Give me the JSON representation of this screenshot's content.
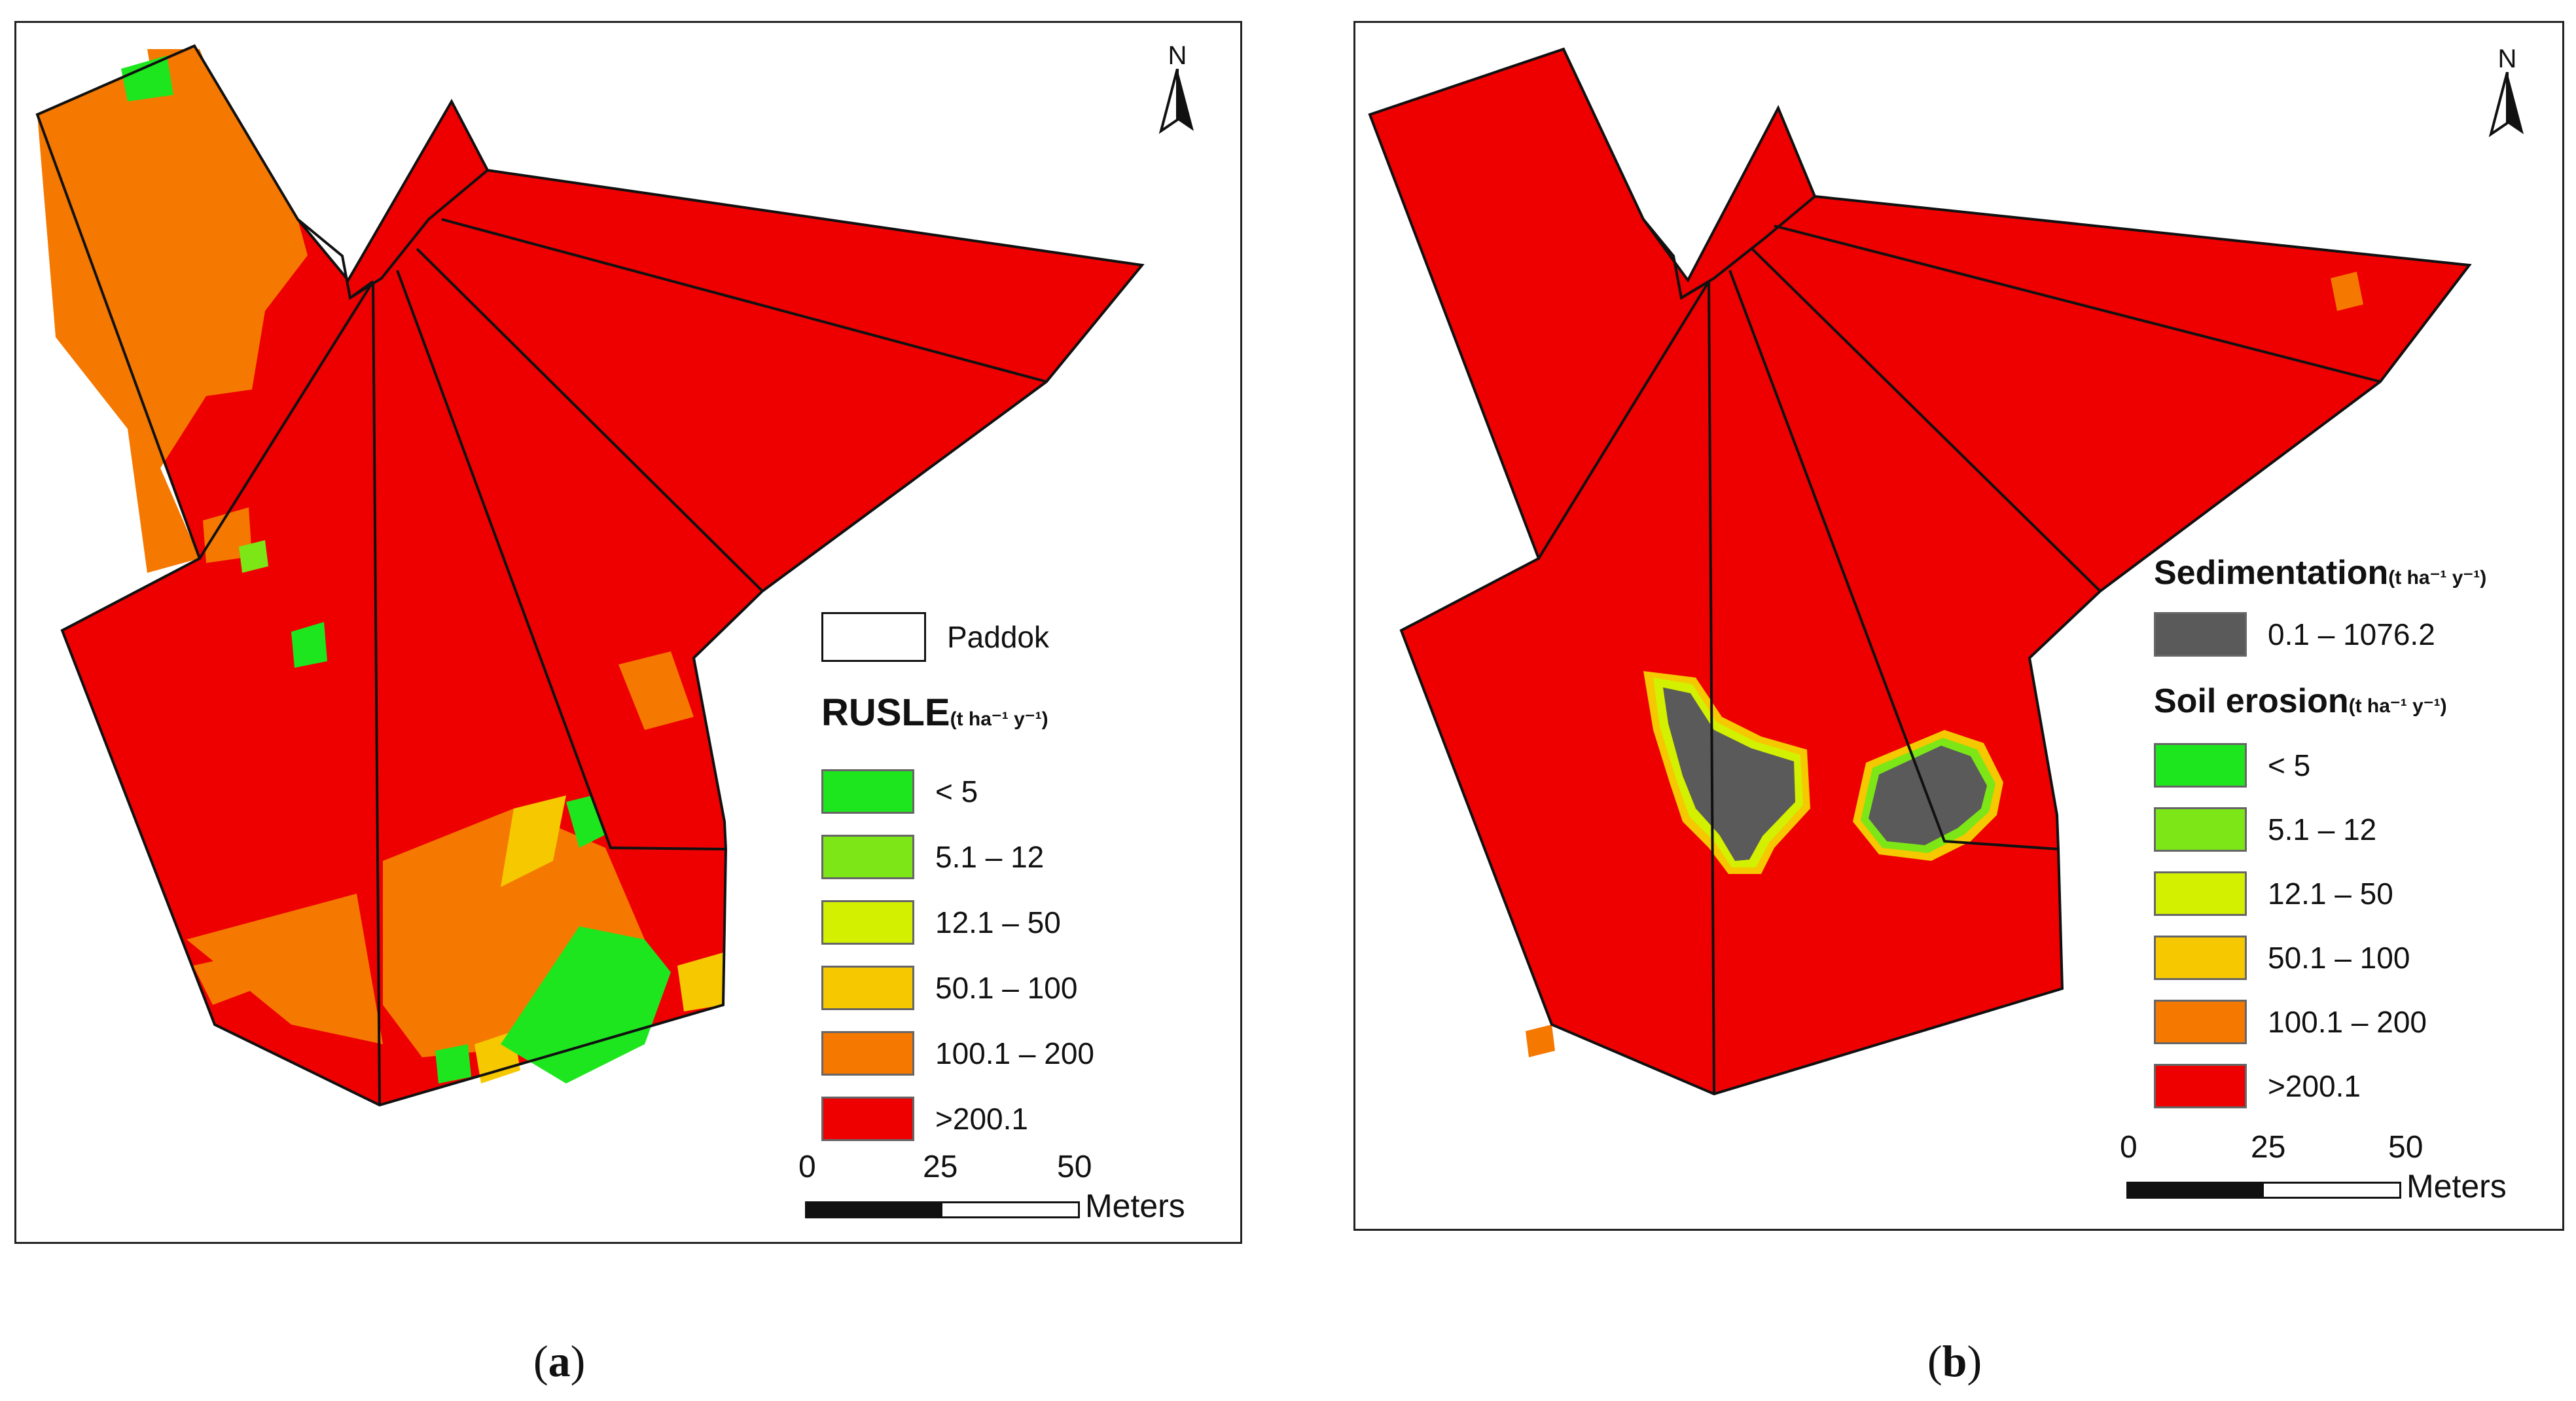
{
  "figure": {
    "panel_a": {
      "caption_letter": "a",
      "legend": {
        "boundary_label": "Paddok",
        "title": "RUSLE",
        "unit": "(t ha⁻¹ y⁻¹)",
        "classes": [
          {
            "label": "< 5",
            "color": "#1ee61e"
          },
          {
            "label": "5.1 – 12",
            "color": "#7ce617"
          },
          {
            "label": "12.1 – 50",
            "color": "#d2f000"
          },
          {
            "label": "50.1 – 100",
            "color": "#f5c800"
          },
          {
            "label": "100.1 – 200",
            "color": "#f57800"
          },
          {
            "label": ">200.1",
            "color": "#ee0000"
          }
        ]
      },
      "north_label": "N",
      "scale": {
        "ticks": [
          "0",
          "25",
          "50"
        ],
        "unit": "Meters"
      }
    },
    "panel_b": {
      "caption_letter": "b",
      "legend": {
        "sed_title": "Sedimentation",
        "sed_unit": "(t ha⁻¹ y⁻¹)",
        "sed_class": {
          "label": "0.1 – 1076.2",
          "color": "#5a5a5a"
        },
        "title": "Soil erosion",
        "unit": "(t ha⁻¹ y⁻¹)",
        "classes": [
          {
            "label": "< 5",
            "color": "#1ee61e"
          },
          {
            "label": "5.1 – 12",
            "color": "#7ce617"
          },
          {
            "label": "12.1 – 50",
            "color": "#d2f000"
          },
          {
            "label": "50.1 – 100",
            "color": "#f5c800"
          },
          {
            "label": "100.1 – 200",
            "color": "#f57800"
          },
          {
            "label": ">200.1",
            "color": "#ee0000"
          }
        ]
      },
      "north_label": "N",
      "scale": {
        "ticks": [
          "0",
          "25",
          "50"
        ],
        "unit": "Meters"
      }
    }
  }
}
